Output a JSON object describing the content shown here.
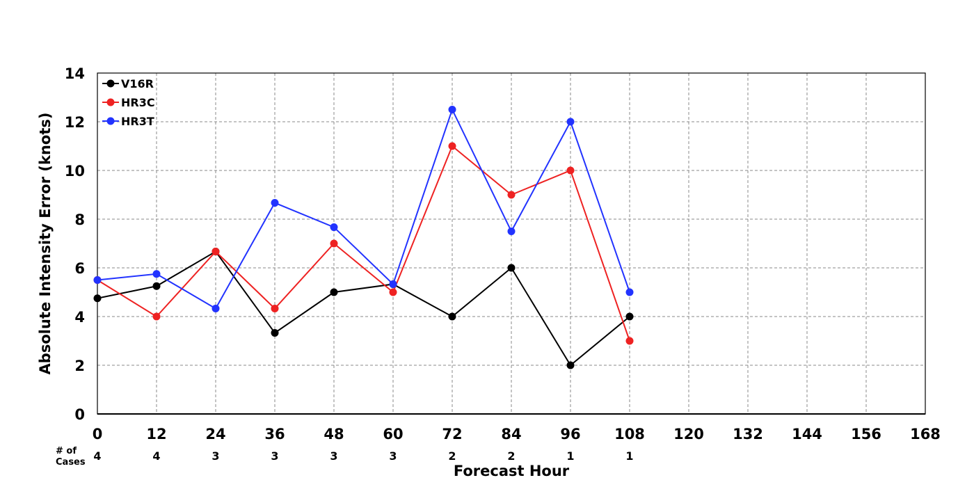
{
  "chart_data": {
    "type": "line",
    "title": "",
    "xlabel": "Forecast Hour",
    "ylabel": "Absolute Intensity Error (knots)",
    "xlim": [
      0,
      168
    ],
    "ylim": [
      0,
      14
    ],
    "x_ticks": [
      0,
      12,
      24,
      36,
      48,
      60,
      72,
      84,
      96,
      108,
      120,
      132,
      144,
      156,
      168
    ],
    "y_ticks": [
      0,
      2,
      4,
      6,
      8,
      10,
      12,
      14
    ],
    "grid": true,
    "legend_position": "top-left",
    "cases_label": [
      "# of",
      "Cases"
    ],
    "cases": [
      {
        "x": 0,
        "n": "4"
      },
      {
        "x": 12,
        "n": "4"
      },
      {
        "x": 24,
        "n": "3"
      },
      {
        "x": 36,
        "n": "3"
      },
      {
        "x": 48,
        "n": "3"
      },
      {
        "x": 60,
        "n": "3"
      },
      {
        "x": 72,
        "n": "2"
      },
      {
        "x": 84,
        "n": "2"
      },
      {
        "x": 96,
        "n": "1"
      },
      {
        "x": 108,
        "n": "1"
      }
    ],
    "x": [
      0,
      12,
      24,
      36,
      48,
      60,
      72,
      84,
      96,
      108
    ],
    "series": [
      {
        "name": "V16R",
        "color": "#000000",
        "values": [
          4.75,
          5.25,
          6.67,
          3.33,
          5.0,
          5.33,
          4.0,
          6.0,
          2.0,
          4.0
        ]
      },
      {
        "name": "HR3C",
        "color": "#ee2222",
        "values": [
          5.5,
          4.0,
          6.67,
          4.33,
          7.0,
          5.0,
          11.0,
          9.0,
          10.0,
          3.0
        ]
      },
      {
        "name": "HR3T",
        "color": "#2233ff",
        "values": [
          5.5,
          5.75,
          4.33,
          8.67,
          7.67,
          5.33,
          12.5,
          7.5,
          12.0,
          5.0
        ]
      }
    ]
  }
}
